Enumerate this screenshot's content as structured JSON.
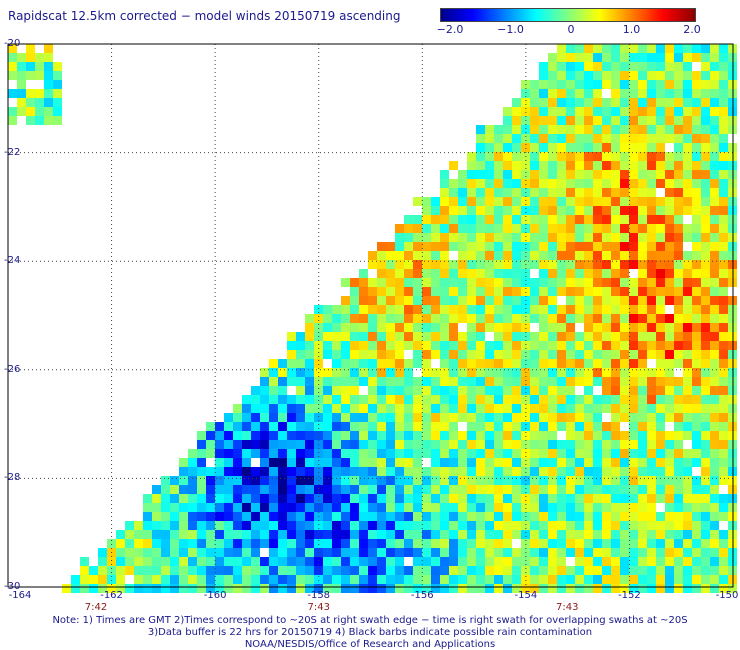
{
  "title": "Rapidscat 12.5km corrected − model winds 20150719 ascending",
  "colorbar": {
    "ticks": [
      {
        "value": -2.0,
        "label": "−2.0"
      },
      {
        "value": -1.0,
        "label": "−1.0"
      },
      {
        "value": 0,
        "label": "0"
      },
      {
        "value": 1.0,
        "label": "1.0"
      },
      {
        "value": 2.0,
        "label": "2.0"
      }
    ],
    "colors": [
      "#00008b",
      "#0000ff",
      "#0080ff",
      "#00ffff",
      "#80ff80",
      "#ffff00",
      "#ff8000",
      "#ff0000",
      "#8b0000"
    ]
  },
  "map": {
    "lat_range": [
      -30,
      -20
    ],
    "lon_range": [
      -164,
      -150
    ],
    "lat_labels": [
      "-20",
      "-22",
      "-24",
      "-26",
      "-28",
      "-30"
    ],
    "lon_labels": [
      "-164",
      "-162",
      "-160",
      "-158",
      "-156",
      "-154",
      "-152",
      "-150"
    ],
    "time_labels": [
      {
        "lon": -162.3,
        "label": "7:42"
      },
      {
        "lon": -158,
        "label": "7:43"
      },
      {
        "lon": -153.2,
        "label": "7:43"
      }
    ]
  },
  "notes": {
    "line1": "Note: 1) Times are GMT 2)Times correspond to ~20S at right swath edge − time is right swath for overlapping swaths at ~20S",
    "line2": "3)Data buffer is 22 hrs for 20150719 4) Black barbs indicate possible rain contamination",
    "line3": "NOAA/NESDIS/Office of Research and Applications"
  }
}
